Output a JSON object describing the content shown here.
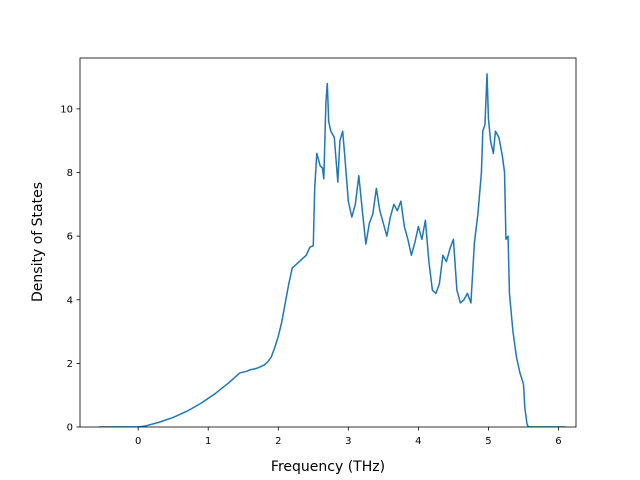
{
  "chart_data": {
    "type": "line",
    "title": "",
    "xlabel": "Frequency (THz)",
    "ylabel": "Density of States",
    "xlim": [
      -0.83,
      6.25
    ],
    "ylim": [
      0,
      11.6
    ],
    "xticks": [
      0,
      1,
      2,
      3,
      4,
      5,
      6
    ],
    "yticks": [
      0,
      2,
      4,
      6,
      8,
      10
    ],
    "grid": false,
    "legend": "none",
    "series": [
      {
        "color": "#1f77b4",
        "x": [
          -0.56,
          -0.3,
          -0.1,
          0.0,
          0.1,
          0.3,
          0.5,
          0.7,
          0.9,
          1.1,
          1.3,
          1.45,
          1.55,
          1.6,
          1.65,
          1.7,
          1.75,
          1.8,
          1.85,
          1.9,
          1.95,
          2.0,
          2.05,
          2.1,
          2.15,
          2.2,
          2.25,
          2.3,
          2.35,
          2.4,
          2.45,
          2.5,
          2.52,
          2.55,
          2.6,
          2.63,
          2.65,
          2.68,
          2.7,
          2.72,
          2.75,
          2.8,
          2.85,
          2.88,
          2.92,
          2.95,
          3.0,
          3.05,
          3.1,
          3.15,
          3.2,
          3.25,
          3.3,
          3.35,
          3.4,
          3.45,
          3.5,
          3.55,
          3.6,
          3.65,
          3.7,
          3.75,
          3.8,
          3.85,
          3.9,
          3.95,
          4.0,
          4.05,
          4.1,
          4.15,
          4.2,
          4.25,
          4.3,
          4.35,
          4.4,
          4.45,
          4.5,
          4.55,
          4.6,
          4.65,
          4.7,
          4.75,
          4.8,
          4.85,
          4.9,
          4.92,
          4.95,
          4.98,
          5.0,
          5.03,
          5.07,
          5.1,
          5.15,
          5.2,
          5.23,
          5.25,
          5.28,
          5.3,
          5.35,
          5.4,
          5.45,
          5.5,
          5.52,
          5.55,
          5.57,
          5.6,
          5.8,
          6.1
        ],
        "y": [
          0.0,
          0.0,
          0.0,
          0.0,
          0.03,
          0.15,
          0.3,
          0.5,
          0.75,
          1.05,
          1.4,
          1.7,
          1.75,
          1.8,
          1.82,
          1.85,
          1.9,
          1.95,
          2.05,
          2.2,
          2.5,
          2.85,
          3.3,
          3.9,
          4.5,
          5.0,
          5.1,
          5.2,
          5.3,
          5.4,
          5.65,
          5.7,
          7.5,
          8.6,
          8.2,
          8.15,
          7.8,
          10.2,
          10.8,
          9.6,
          9.3,
          9.1,
          7.7,
          9.0,
          9.3,
          8.5,
          7.1,
          6.6,
          7.0,
          7.9,
          6.8,
          5.75,
          6.4,
          6.7,
          7.5,
          6.8,
          6.4,
          6.0,
          6.6,
          7.0,
          6.8,
          7.1,
          6.3,
          5.9,
          5.4,
          5.8,
          6.3,
          5.9,
          6.5,
          5.2,
          4.3,
          4.2,
          4.5,
          5.4,
          5.2,
          5.6,
          5.9,
          4.3,
          3.9,
          4.0,
          4.2,
          3.9,
          5.8,
          6.7,
          8.0,
          9.3,
          9.5,
          11.1,
          9.7,
          9.0,
          8.6,
          9.3,
          9.1,
          8.5,
          8.0,
          5.9,
          6.0,
          4.2,
          3.0,
          2.2,
          1.7,
          1.35,
          0.6,
          0.1,
          0.0,
          0.0,
          0.0,
          0.0
        ]
      }
    ]
  }
}
